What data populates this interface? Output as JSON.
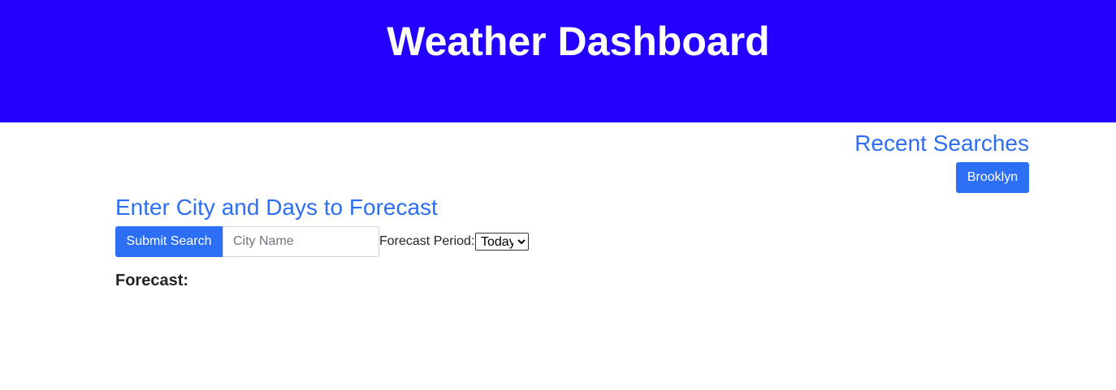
{
  "header": {
    "title": "Weather Dashboard",
    "background_color": "#2400ff"
  },
  "recent": {
    "title": "Recent Searches",
    "items": [
      "Brooklyn"
    ]
  },
  "form": {
    "title": "Enter City and Days to Forecast",
    "submit_label": "Submit Search",
    "city_placeholder": "City Name",
    "city_value": "",
    "period_label": "Forecast Period:",
    "period_selected": "Today"
  },
  "forecast": {
    "label": "Forecast:"
  },
  "colors": {
    "accent": "#2c6ff4",
    "text": "#212529"
  }
}
